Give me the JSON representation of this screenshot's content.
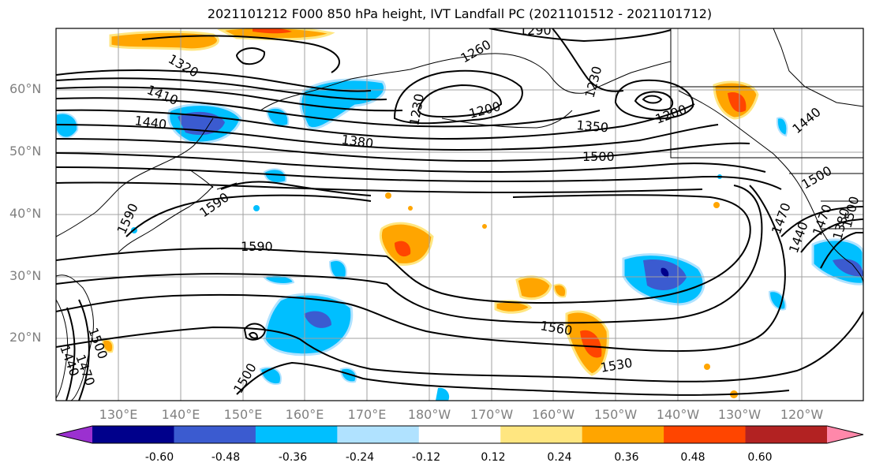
{
  "title": "2021101212 F000 850 hPa height, IVT Landfall PC (2021101512 - 2021101712)",
  "lat_labels": [
    "60°N",
    "50°N",
    "40°N",
    "30°N",
    "20°N"
  ],
  "lon_labels": [
    "130°E",
    "140°E",
    "150°E",
    "160°E",
    "170°E",
    "180°W",
    "170°W",
    "160°W",
    "150°W",
    "140°W",
    "130°W",
    "120°W"
  ],
  "contour_labels": [
    "1320",
    "1290",
    "1260",
    "1230",
    "1200",
    "1410",
    "1440",
    "1380",
    "1230",
    "1350",
    "1200",
    "1440",
    "1500",
    "1590",
    "1590",
    "1590",
    "1500",
    "1560",
    "1530",
    "1500",
    "1470",
    "1440",
    "1470",
    "1500",
    "1440",
    "1470",
    "1380",
    "1500"
  ],
  "colorbar": {
    "ticks": [
      "-0.60",
      "-0.48",
      "-0.36",
      "-0.24",
      "-0.12",
      "0.12",
      "0.24",
      "0.36",
      "0.48",
      "0.60"
    ],
    "colors": [
      "#9b30d0",
      "#00008b",
      "#3b5bd0",
      "#00bfff",
      "#b0e2ff",
      "#ffffff",
      "#ffe680",
      "#ffa500",
      "#ff4500",
      "#b22222",
      "#ff88aa"
    ]
  }
}
